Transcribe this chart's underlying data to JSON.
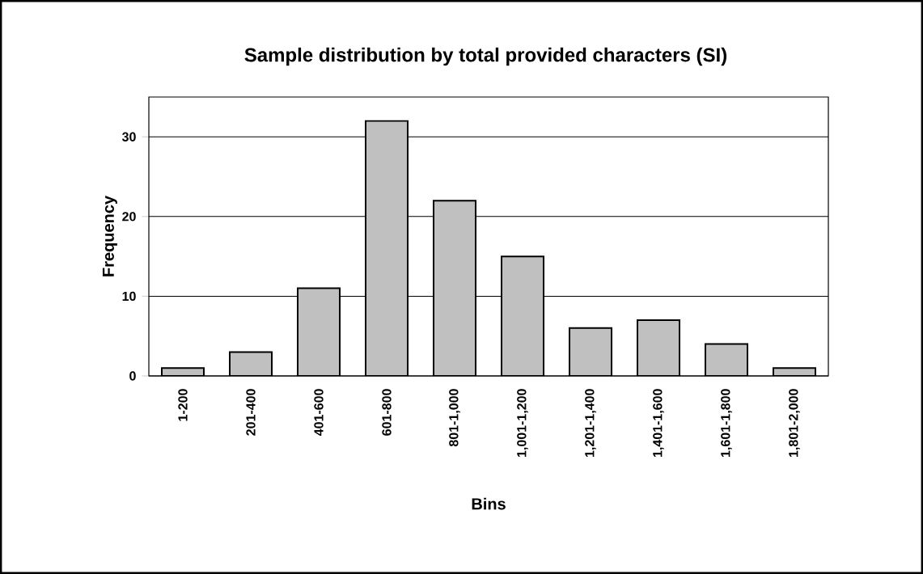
{
  "chart_data": {
    "type": "bar",
    "title": "Sample distribution by total provided characters (SI)",
    "xlabel": "Bins",
    "ylabel": "Frequency",
    "categories": [
      "1-200",
      "201-400",
      "401-600",
      "601-800",
      "801-1,000",
      "1,001-1,200",
      "1,201-1,400",
      "1,401-1,600",
      "1,601-1,800",
      "1,801-2,000"
    ],
    "values": [
      1,
      3,
      11,
      32,
      22,
      15,
      6,
      7,
      4,
      1
    ],
    "color": "#c0c0c0",
    "ylim": [
      0,
      35
    ],
    "yticks": [
      0,
      10,
      20,
      30
    ],
    "grid": "y"
  }
}
